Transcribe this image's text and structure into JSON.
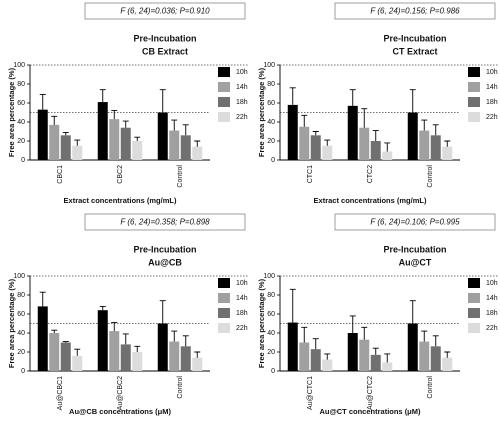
{
  "chart_data": [
    {
      "type": "bar",
      "stat": "F (6, 24)=0.036; P=0.910",
      "title": "Pre-Incubation",
      "subtitle": "CB Extract",
      "xlabel": "Extract concentrations (mg/mL)",
      "ylabel": "Free area percentage (%)",
      "categories": [
        "CBC1",
        "CBC2",
        "Control"
      ],
      "series": [
        {
          "name": "10h",
          "color": "#000000",
          "values": [
            53,
            61,
            50
          ],
          "errors": [
            16,
            13,
            24
          ]
        },
        {
          "name": "14h",
          "color": "#a0a0a0",
          "values": [
            37,
            43,
            31
          ],
          "errors": [
            9,
            9,
            11
          ]
        },
        {
          "name": "18h",
          "color": "#707070",
          "values": [
            26,
            34,
            26
          ],
          "errors": [
            3,
            7,
            11
          ]
        },
        {
          "name": "22h",
          "color": "#dcdcdc",
          "values": [
            15,
            20,
            14
          ],
          "errors": [
            6,
            4,
            6
          ]
        }
      ],
      "ylim": [
        0,
        100
      ],
      "yticks": [
        0,
        20,
        40,
        60,
        80,
        100
      ],
      "ref_lines": [
        50,
        100
      ]
    },
    {
      "type": "bar",
      "stat": "F (6, 24)=0.156; P=0.986",
      "title": "Pre-Incubation",
      "subtitle": "CT Extract",
      "xlabel": "Extract concentrations (mg/mL)",
      "ylabel": "Free area percentage (%)",
      "categories": [
        "CTC1",
        "CTC2",
        "Control"
      ],
      "series": [
        {
          "name": "10h",
          "color": "#000000",
          "values": [
            58,
            57,
            50
          ],
          "errors": [
            18,
            17,
            24
          ]
        },
        {
          "name": "14h",
          "color": "#a0a0a0",
          "values": [
            35,
            34,
            31
          ],
          "errors": [
            12,
            20,
            11
          ]
        },
        {
          "name": "18h",
          "color": "#707070",
          "values": [
            26,
            20,
            26
          ],
          "errors": [
            4,
            11,
            11
          ]
        },
        {
          "name": "22h",
          "color": "#dcdcdc",
          "values": [
            15,
            9,
            14
          ],
          "errors": [
            6,
            9,
            6
          ]
        }
      ],
      "ylim": [
        0,
        100
      ],
      "yticks": [
        0,
        20,
        40,
        60,
        80,
        100
      ],
      "ref_lines": [
        50,
        100
      ]
    },
    {
      "type": "bar",
      "stat": "F (6, 24)=0.358; P=0.898",
      "title": "Pre-Incubation",
      "subtitle": "Au@CB",
      "xlabel": "Au@CB concentrations (μM)",
      "ylabel": "Free area percentage (%)",
      "categories": [
        "Au@CBC1",
        "Au@CBC2",
        "Control"
      ],
      "series": [
        {
          "name": "10h",
          "color": "#000000",
          "values": [
            68,
            64,
            50
          ],
          "errors": [
            15,
            4,
            24
          ]
        },
        {
          "name": "14h",
          "color": "#a0a0a0",
          "values": [
            40,
            42,
            31
          ],
          "errors": [
            3,
            9,
            11
          ]
        },
        {
          "name": "18h",
          "color": "#707070",
          "values": [
            30,
            28,
            26
          ],
          "errors": [
            1,
            11,
            11
          ]
        },
        {
          "name": "22h",
          "color": "#dcdcdc",
          "values": [
            16,
            20,
            14
          ],
          "errors": [
            7,
            6,
            6
          ]
        }
      ],
      "ylim": [
        0,
        100
      ],
      "yticks": [
        0,
        20,
        40,
        60,
        80,
        100
      ],
      "ref_lines": [
        50,
        100
      ]
    },
    {
      "type": "bar",
      "stat": "F (6, 24)=0.106; P=0.995",
      "title": "Pre-Incubation",
      "subtitle": "Au@CT",
      "xlabel": "Au@CT concentrations (μM)",
      "ylabel": "Free area percentage (%)",
      "categories": [
        "Au@CTC1",
        "Au@CTC2",
        "Control"
      ],
      "series": [
        {
          "name": "10h",
          "color": "#000000",
          "values": [
            51,
            40,
            50
          ],
          "errors": [
            35,
            18,
            24
          ]
        },
        {
          "name": "14h",
          "color": "#a0a0a0",
          "values": [
            30,
            33,
            31
          ],
          "errors": [
            16,
            13,
            11
          ]
        },
        {
          "name": "18h",
          "color": "#707070",
          "values": [
            23,
            17,
            26
          ],
          "errors": [
            11,
            7,
            11
          ]
        },
        {
          "name": "22h",
          "color": "#dcdcdc",
          "values": [
            12,
            9,
            14
          ],
          "errors": [
            6,
            9,
            6
          ]
        }
      ],
      "ylim": [
        0,
        100
      ],
      "yticks": [
        0,
        20,
        40,
        60,
        80,
        100
      ],
      "ref_lines": [
        50,
        100
      ]
    }
  ]
}
